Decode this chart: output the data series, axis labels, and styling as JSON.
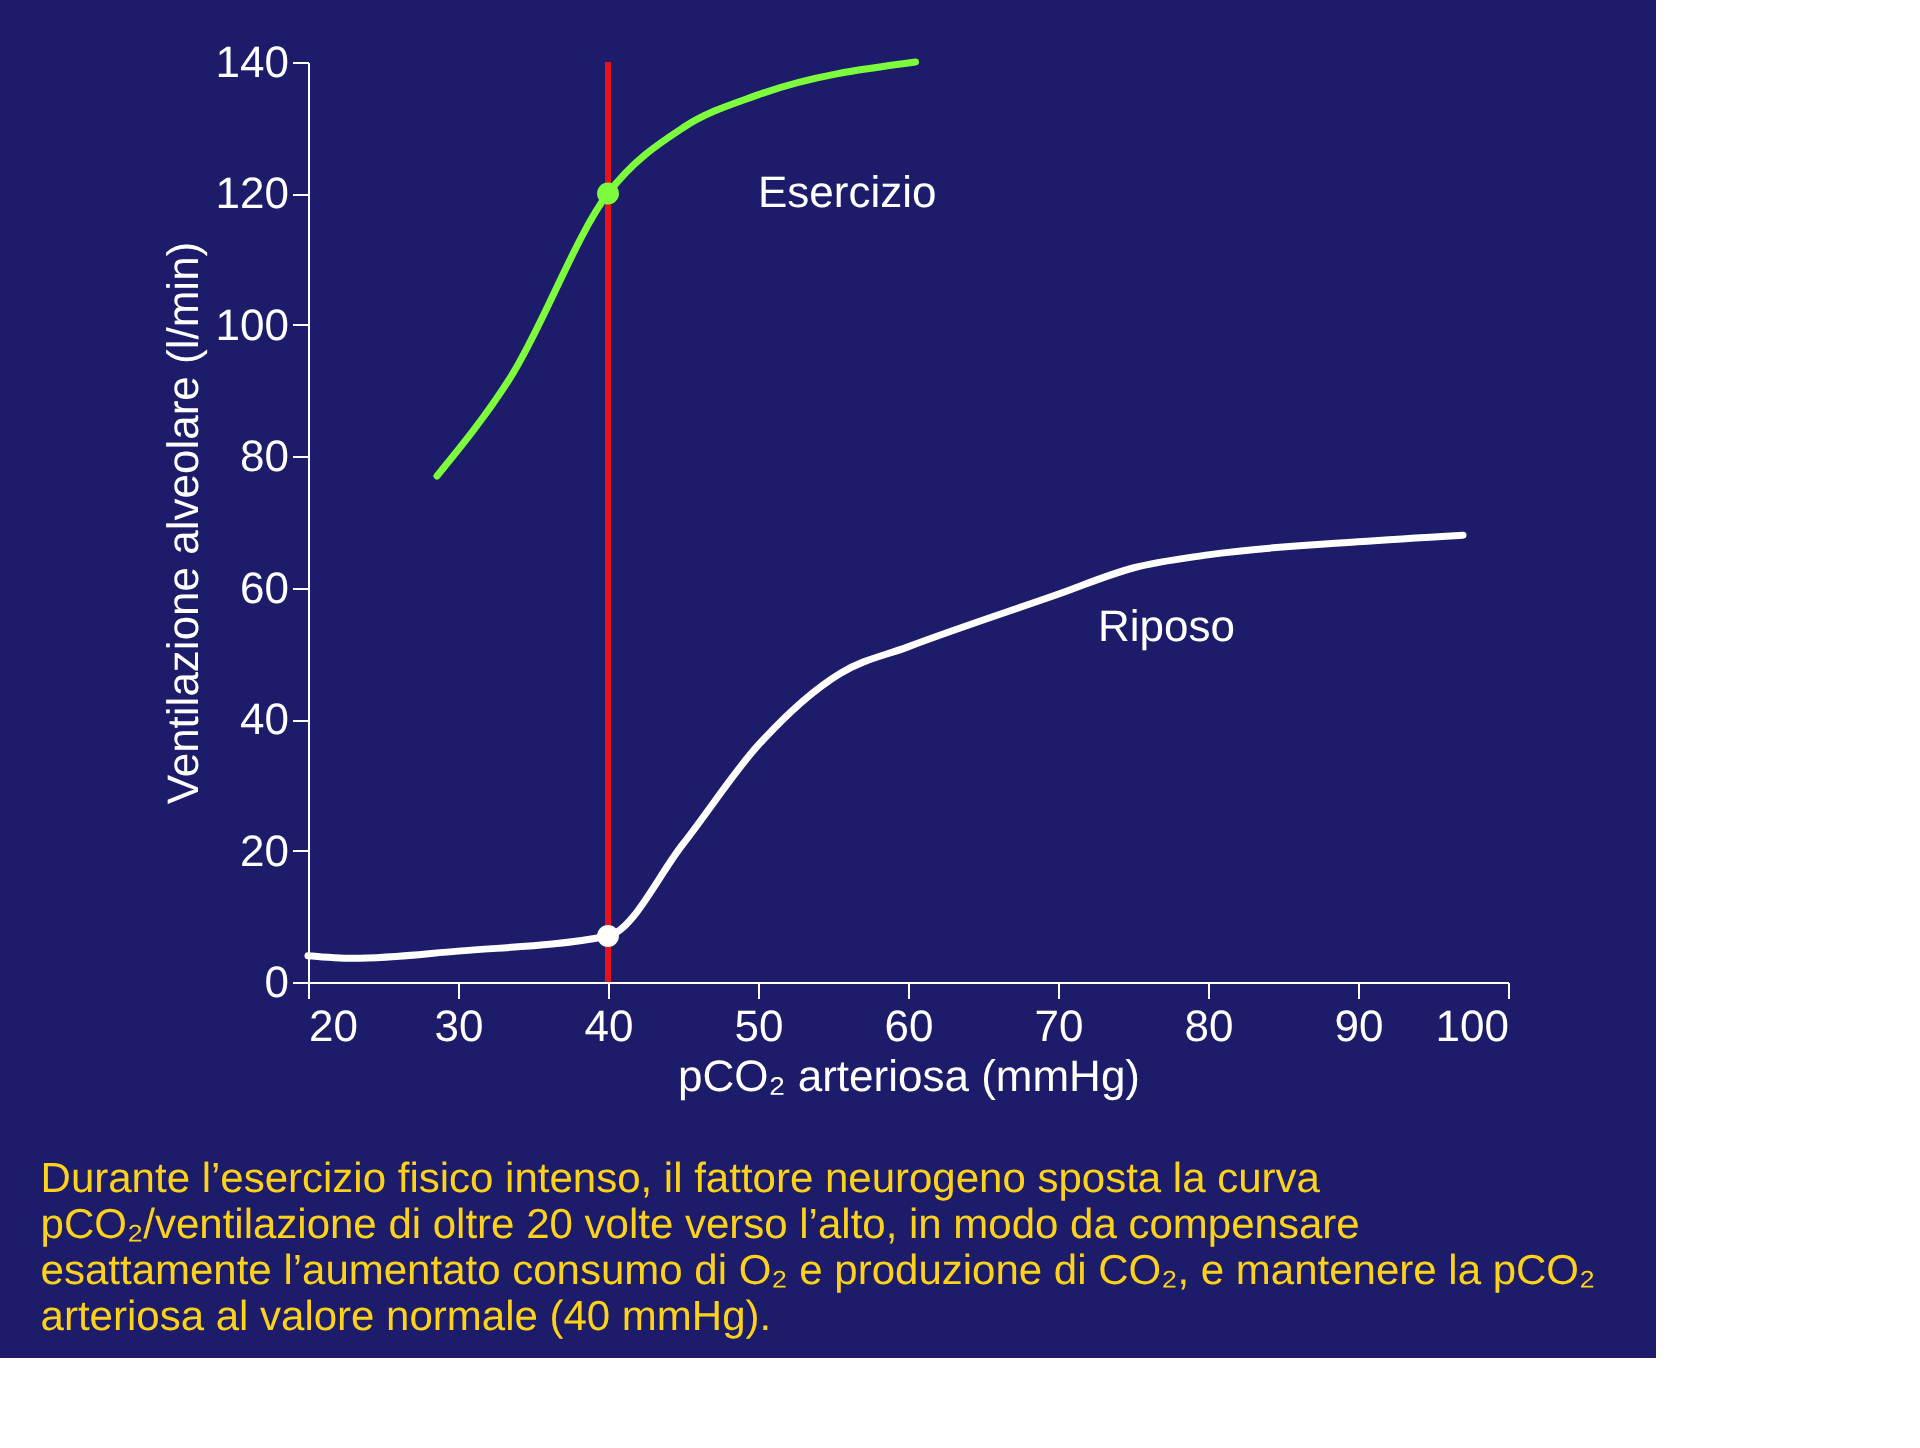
{
  "chart_data": {
    "type": "line",
    "xlabel": "pCO₂ arteriosa (mmHg)",
    "ylabel": "Ventilazione alveolare (l/min)",
    "xlim": [
      20,
      100
    ],
    "xticks": [
      20,
      30,
      40,
      50,
      60,
      70,
      80,
      90,
      100
    ],
    "ylim": [
      0,
      140
    ],
    "yticks": [
      0,
      20,
      40,
      60,
      80,
      100,
      120,
      140
    ],
    "series": [
      {
        "name": "Esercizio",
        "color": "#7cfc3c",
        "x": [
          28.6,
          33.5,
          40,
          45,
          50,
          60.5
        ],
        "values": [
          77,
          92,
          120,
          130,
          135,
          140
        ]
      },
      {
        "name": "Riposo",
        "color": "#ffffff",
        "x": [
          20,
          23,
          30,
          40,
          45,
          50,
          55.5,
          60,
          70,
          75,
          80,
          90,
          97
        ],
        "values": [
          4,
          3.6,
          4.7,
          7,
          21,
          36,
          47,
          51,
          59,
          63,
          65,
          67,
          68
        ]
      },
      {
        "type": "scatter",
        "marker": "circle",
        "color": "#7cfc3c",
        "x": [
          40
        ],
        "values": [
          120
        ]
      },
      {
        "type": "scatter",
        "marker": "circle",
        "color": "#ffffff",
        "x": [
          40
        ],
        "values": [
          7
        ]
      }
    ],
    "ref_lines": [
      {
        "axis": "x",
        "value": 40,
        "color": "#e8101a"
      }
    ],
    "annotations": [
      "Durante l’esercizio fisico intenso, il fattore neurogeno sposta la curva pCO₂/ventilazione di oltre 20 volte verso l’alto, in modo da compensare esattamente l’aumentato consumo di O₂ e produzione di CO₂, e mantenere la pCO₂ arteriosa al valore normale (40 mmHg)."
    ]
  }
}
